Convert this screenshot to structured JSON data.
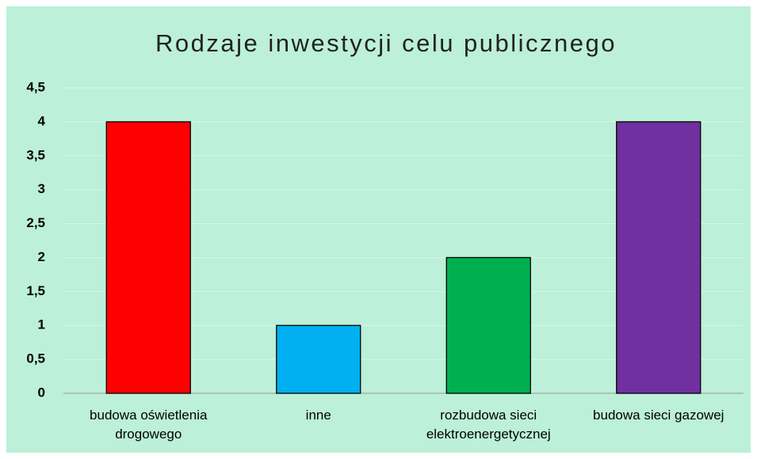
{
  "chart_data": {
    "type": "bar",
    "title": "Rodzaje inwestycji celu publicznego",
    "categories": [
      "budowa oświetlenia drogowego",
      "inne",
      "rozbudowa sieci elektroenergetycznej",
      "budowa sieci gazowej"
    ],
    "values": [
      4,
      1,
      2,
      4
    ],
    "colors": [
      "#ff0000",
      "#00b0f0",
      "#00b050",
      "#7030a0"
    ],
    "ylim": [
      0,
      4.5
    ],
    "yticks": [
      0,
      {
        "value": 0.5,
        "label": "0,5"
      },
      1,
      {
        "value": 1.5,
        "label": "1,5"
      },
      2,
      {
        "value": 2.5,
        "label": "2,5"
      },
      3,
      {
        "value": 3.5,
        "label": "3,5"
      },
      4,
      {
        "value": 4.5,
        "label": "4,5"
      }
    ],
    "grid": true
  }
}
